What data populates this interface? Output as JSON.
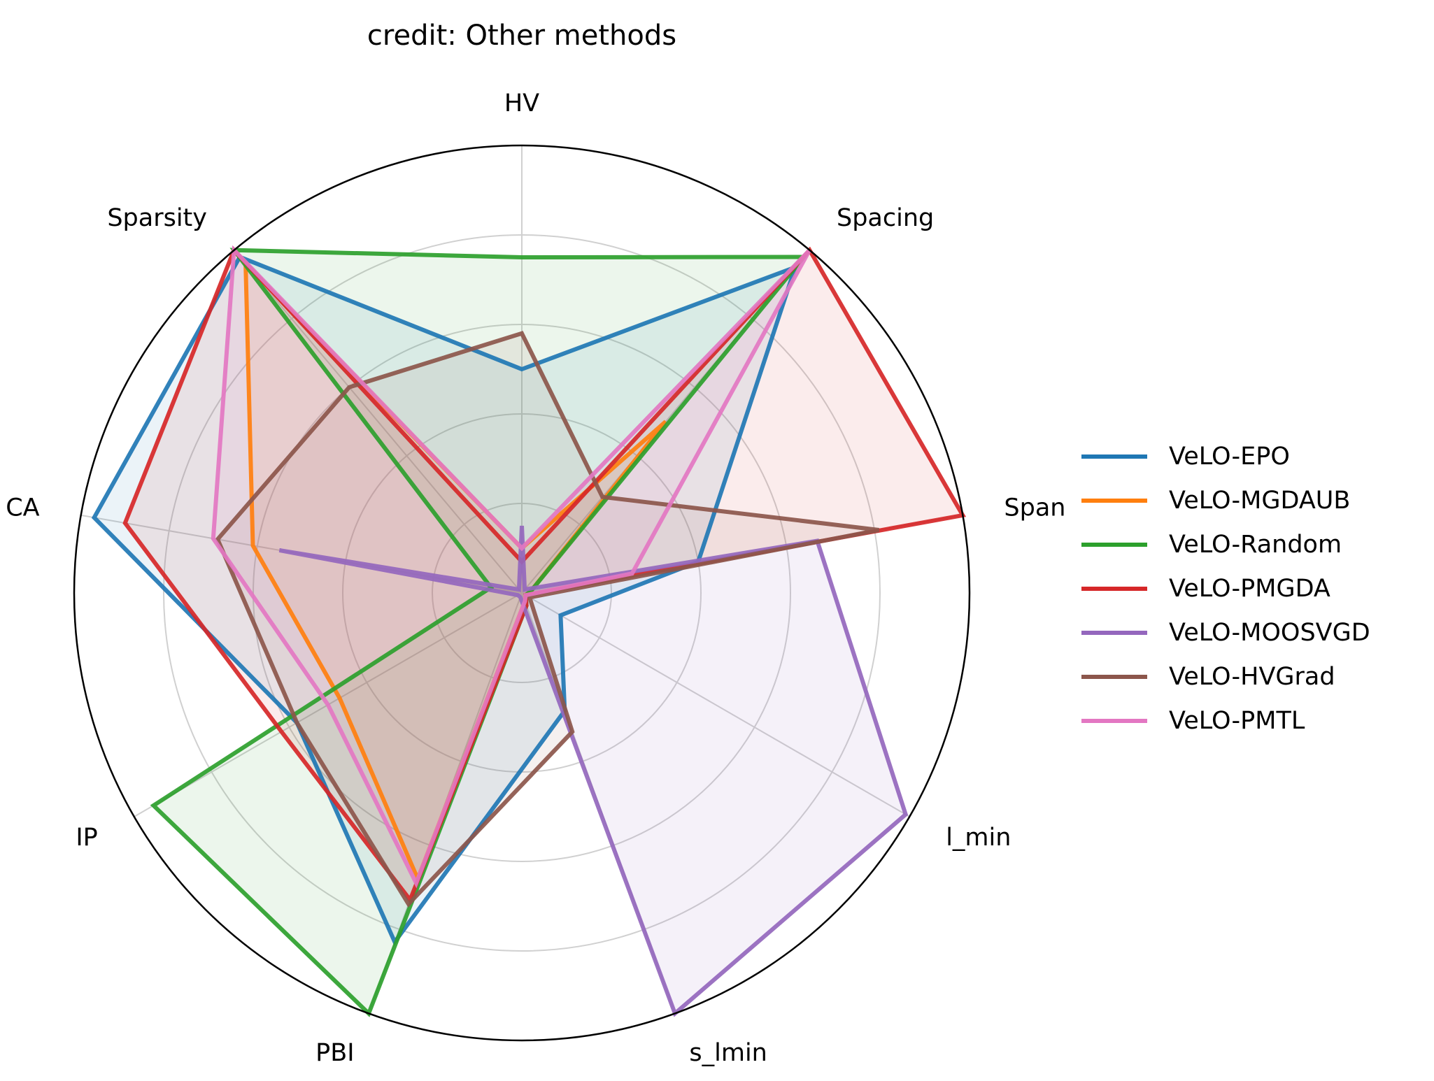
{
  "chart_data": {
    "type": "radar",
    "title": "credit: Other methods",
    "axes": [
      "HV",
      "Spacing",
      "Span",
      "l_min",
      "s_lmin",
      "PBI",
      "IP",
      "CA",
      "Sparsity"
    ],
    "rlim": [
      0,
      1
    ],
    "grid_levels": [
      0.2,
      0.4,
      0.6,
      0.8
    ],
    "grid": true,
    "legend_position": "right",
    "series": [
      {
        "name": "VeLO-EPO",
        "color": "#1f77b4",
        "values": [
          0.5,
          0.95,
          0.4,
          0.1,
          0.28,
          0.83,
          0.58,
          0.97,
          0.98
        ]
      },
      {
        "name": "VeLO-MGDAUB",
        "color": "#ff7f0e",
        "values": [
          0.1,
          0.5,
          0.02,
          0.01,
          0.02,
          0.68,
          0.47,
          0.61,
          0.96
        ]
      },
      {
        "name": "VeLO-Random",
        "color": "#2ca02c",
        "values": [
          0.75,
          0.98,
          0.02,
          0.01,
          0.03,
          1.0,
          0.95,
          0.07,
          1.0
        ]
      },
      {
        "name": "VeLO-PMGDA",
        "color": "#d62728",
        "values": [
          0.07,
          1.0,
          1.0,
          0.01,
          0.03,
          0.73,
          0.62,
          0.9,
          1.0
        ]
      },
      {
        "name": "VeLO-MOOSVGD",
        "color": "#9467bd",
        "values": [
          0.15,
          0.01,
          0.67,
          0.99,
          1.0,
          0.01,
          0.01,
          0.55,
          0.01
        ]
      },
      {
        "name": "VeLO-HVGrad",
        "color": "#8c564b",
        "values": [
          0.58,
          0.28,
          0.81,
          0.02,
          0.33,
          0.74,
          0.58,
          0.69,
          0.6
        ]
      },
      {
        "name": "VeLO-PMTL",
        "color": "#e377c2",
        "values": [
          0.1,
          1.0,
          0.25,
          0.01,
          0.02,
          0.69,
          0.5,
          0.7,
          1.0
        ]
      }
    ]
  }
}
